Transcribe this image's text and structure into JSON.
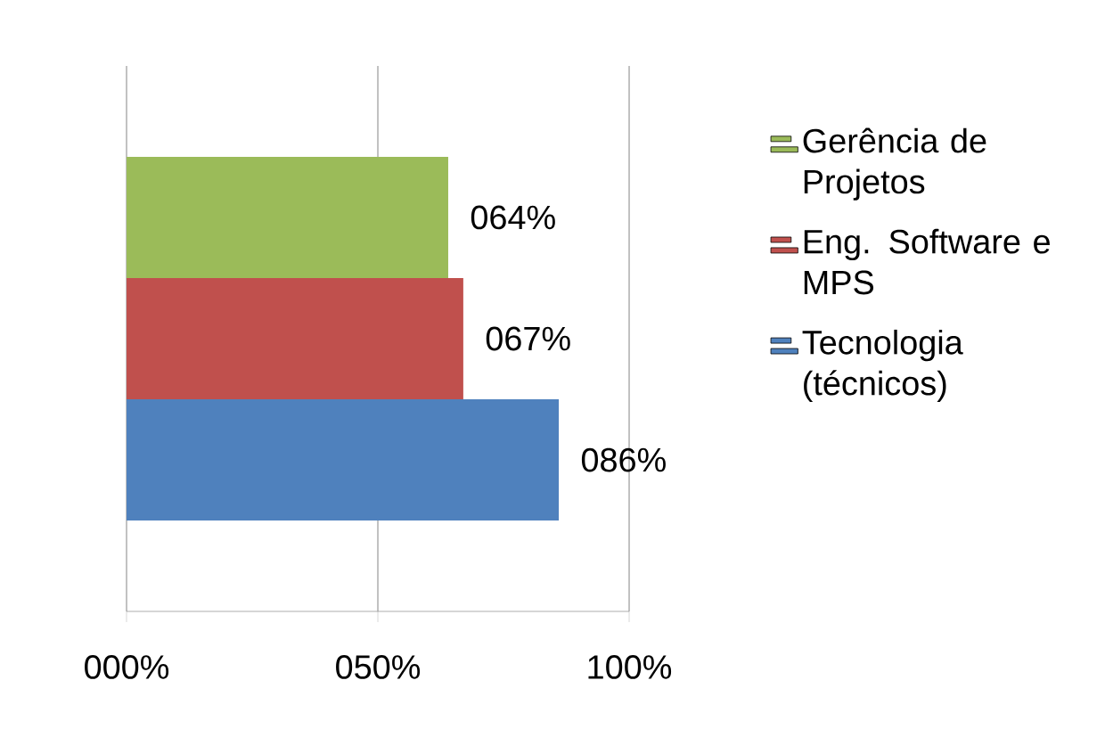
{
  "chart_data": {
    "type": "bar",
    "orientation": "horizontal",
    "categories": [
      null
    ],
    "series": [
      {
        "name": "Gerência de Projetos",
        "color": "#9bbb59",
        "values": [
          64
        ],
        "value_labels": [
          "064%"
        ]
      },
      {
        "name": "Eng. Software e MPS",
        "color": "#c0504d",
        "values": [
          67
        ],
        "value_labels": [
          "067%"
        ]
      },
      {
        "name": "Tecnologia (técnicos)",
        "color": "#4f81bd",
        "values": [
          86
        ],
        "value_labels": [
          "086%"
        ]
      }
    ],
    "xlim": [
      0,
      100
    ],
    "xticks": [
      {
        "value": 0,
        "label": "000%"
      },
      {
        "value": 50,
        "label": "050%"
      },
      {
        "value": 100,
        "label": "100%"
      }
    ],
    "grid": "x",
    "legend": "right"
  }
}
